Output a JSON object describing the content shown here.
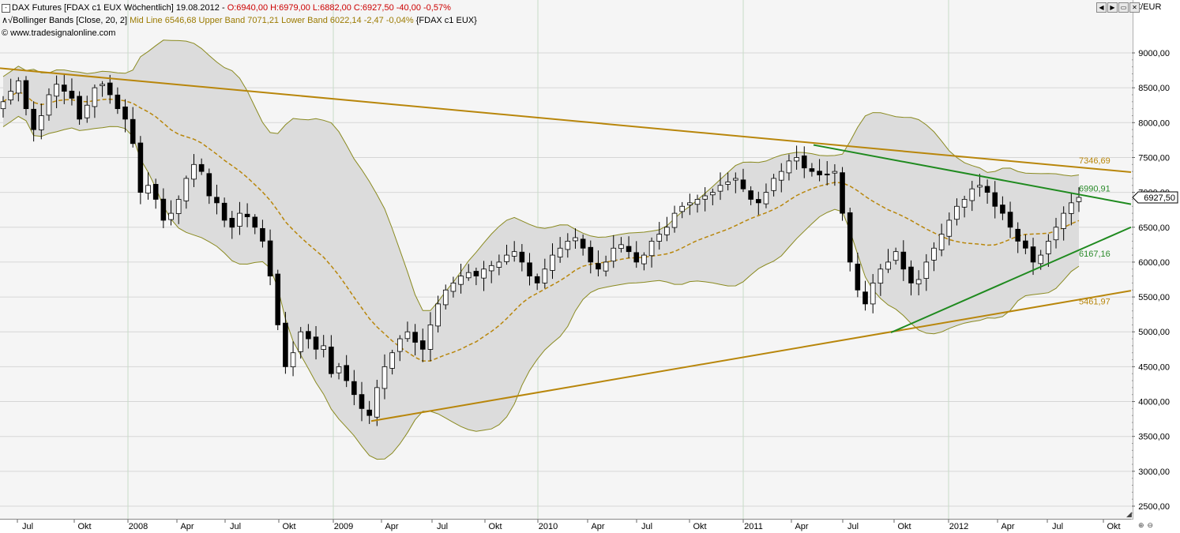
{
  "header": {
    "line1_black": "DAX Futures [FDAX c1 EUX  Wöchentlich] 19.08.2012 - ",
    "line1_red": "O:6940,00 H:6979,00 L:6882,00 C:6927,50 -40,00 -0,57%",
    "line2_black": "Bollinger Bands [Close, 20, 2] ",
    "line2_olive": "Mid Line 6546,68 Upper Band 7071,21 Lower Band 6022,14 -2,47 -0,04%",
    "line2_suffix": " {FDAX c1 EUX}",
    "line3": "© www.tradesignalonline.com"
  },
  "currency": "€/EUR",
  "chart_data": {
    "type": "candlestick",
    "instrument": "DAX Futures [FDAX c1 EUX  Wöchentlich]",
    "date": "19.08.2012",
    "ohlc_last": {
      "open": 6940.0,
      "high": 6979.0,
      "low": 6882.0,
      "close": 6927.5,
      "change": -40.0,
      "change_pct": -0.57
    },
    "ylim": [
      2300,
      9500
    ],
    "y_ticks": [
      "9000,00",
      "8500,00",
      "8000,00",
      "7500,00",
      "7000,00",
      "6500,00",
      "6000,00",
      "5500,00",
      "5000,00",
      "4500,00",
      "4000,00",
      "3500,00",
      "3000,00",
      "2500,00"
    ],
    "x_ticks": [
      "Jul",
      "Okt",
      "2008",
      "Apr",
      "Jul",
      "Okt",
      "2009",
      "Apr",
      "Jul",
      "Okt",
      "2010",
      "Apr",
      "Jul",
      "Okt",
      "2011",
      "Apr",
      "Jul",
      "Okt",
      "2012",
      "Apr",
      "Jul",
      "Okt"
    ],
    "last_price_label": "6927,50",
    "trendline_labels": [
      {
        "text": "7346,69",
        "value": 7346.69,
        "color": "#b8860b"
      },
      {
        "text": "6990,91",
        "value": 6990.91,
        "color": "#2a8a2a"
      },
      {
        "text": "6167,16",
        "value": 6167.16,
        "color": "#2a8a2a"
      },
      {
        "text": "5461,97",
        "value": 5461.97,
        "color": "#b8860b"
      }
    ],
    "closes": [
      8300,
      8450,
      8600,
      8200,
      7900,
      8100,
      8400,
      8550,
      8450,
      8350,
      8050,
      8250,
      8500,
      8550,
      8400,
      8200,
      8050,
      7700,
      7000,
      7100,
      6900,
      6600,
      6700,
      6900,
      7200,
      7400,
      7300,
      6950,
      6850,
      6600,
      6500,
      6700,
      6650,
      6500,
      6300,
      5800,
      5100,
      4500,
      4700,
      5000,
      4900,
      4750,
      4800,
      4400,
      4500,
      4300,
      4100,
      3900,
      3800,
      4200,
      4500,
      4700,
      4900,
      5000,
      4850,
      4750,
      5100,
      5400,
      5600,
      5700,
      5800,
      5850,
      5800,
      5900,
      5950,
      6000,
      6100,
      6150,
      6000,
      5800,
      5700,
      5900,
      6100,
      6200,
      6300,
      6350,
      6200,
      6000,
      5900,
      6000,
      6200,
      6250,
      6150,
      6000,
      6100,
      6300,
      6400,
      6500,
      6700,
      6800,
      6850,
      6900,
      6950,
      7000,
      7100,
      7150,
      7200,
      7050,
      6900,
      6850,
      7000,
      7200,
      7300,
      7450,
      7500,
      7350,
      7300,
      7250,
      7250,
      7300,
      6700,
      6000,
      5600,
      5400,
      5700,
      5900,
      6000,
      6150,
      5900,
      5700,
      5750,
      6000,
      6200,
      6400,
      6600,
      6800,
      6900,
      7050,
      7100,
      7000,
      6800,
      6700,
      6500,
      6300,
      6200,
      6000,
      6100,
      6300,
      6500,
      6700,
      6850,
      6927.5
    ],
    "trendlines": [
      {
        "name": "",
        "color": "#b8860b",
        "from": [
          0,
          8780
        ],
        "to": [
          1432,
          7290
        ]
      },
      {
        "name": "",
        "color": "#b8860b",
        "from": [
          470,
          3720
        ],
        "to": [
          1432,
          5590
        ]
      },
      {
        "name": "",
        "color": "#1f8a1f",
        "from": [
          1030,
          7680
        ],
        "to": [
          1432,
          6830
        ]
      },
      {
        "name": "",
        "color": "#1f8a1f",
        "from": [
          1128,
          4990
        ],
        "to": [
          1432,
          6500
        ]
      }
    ]
  }
}
